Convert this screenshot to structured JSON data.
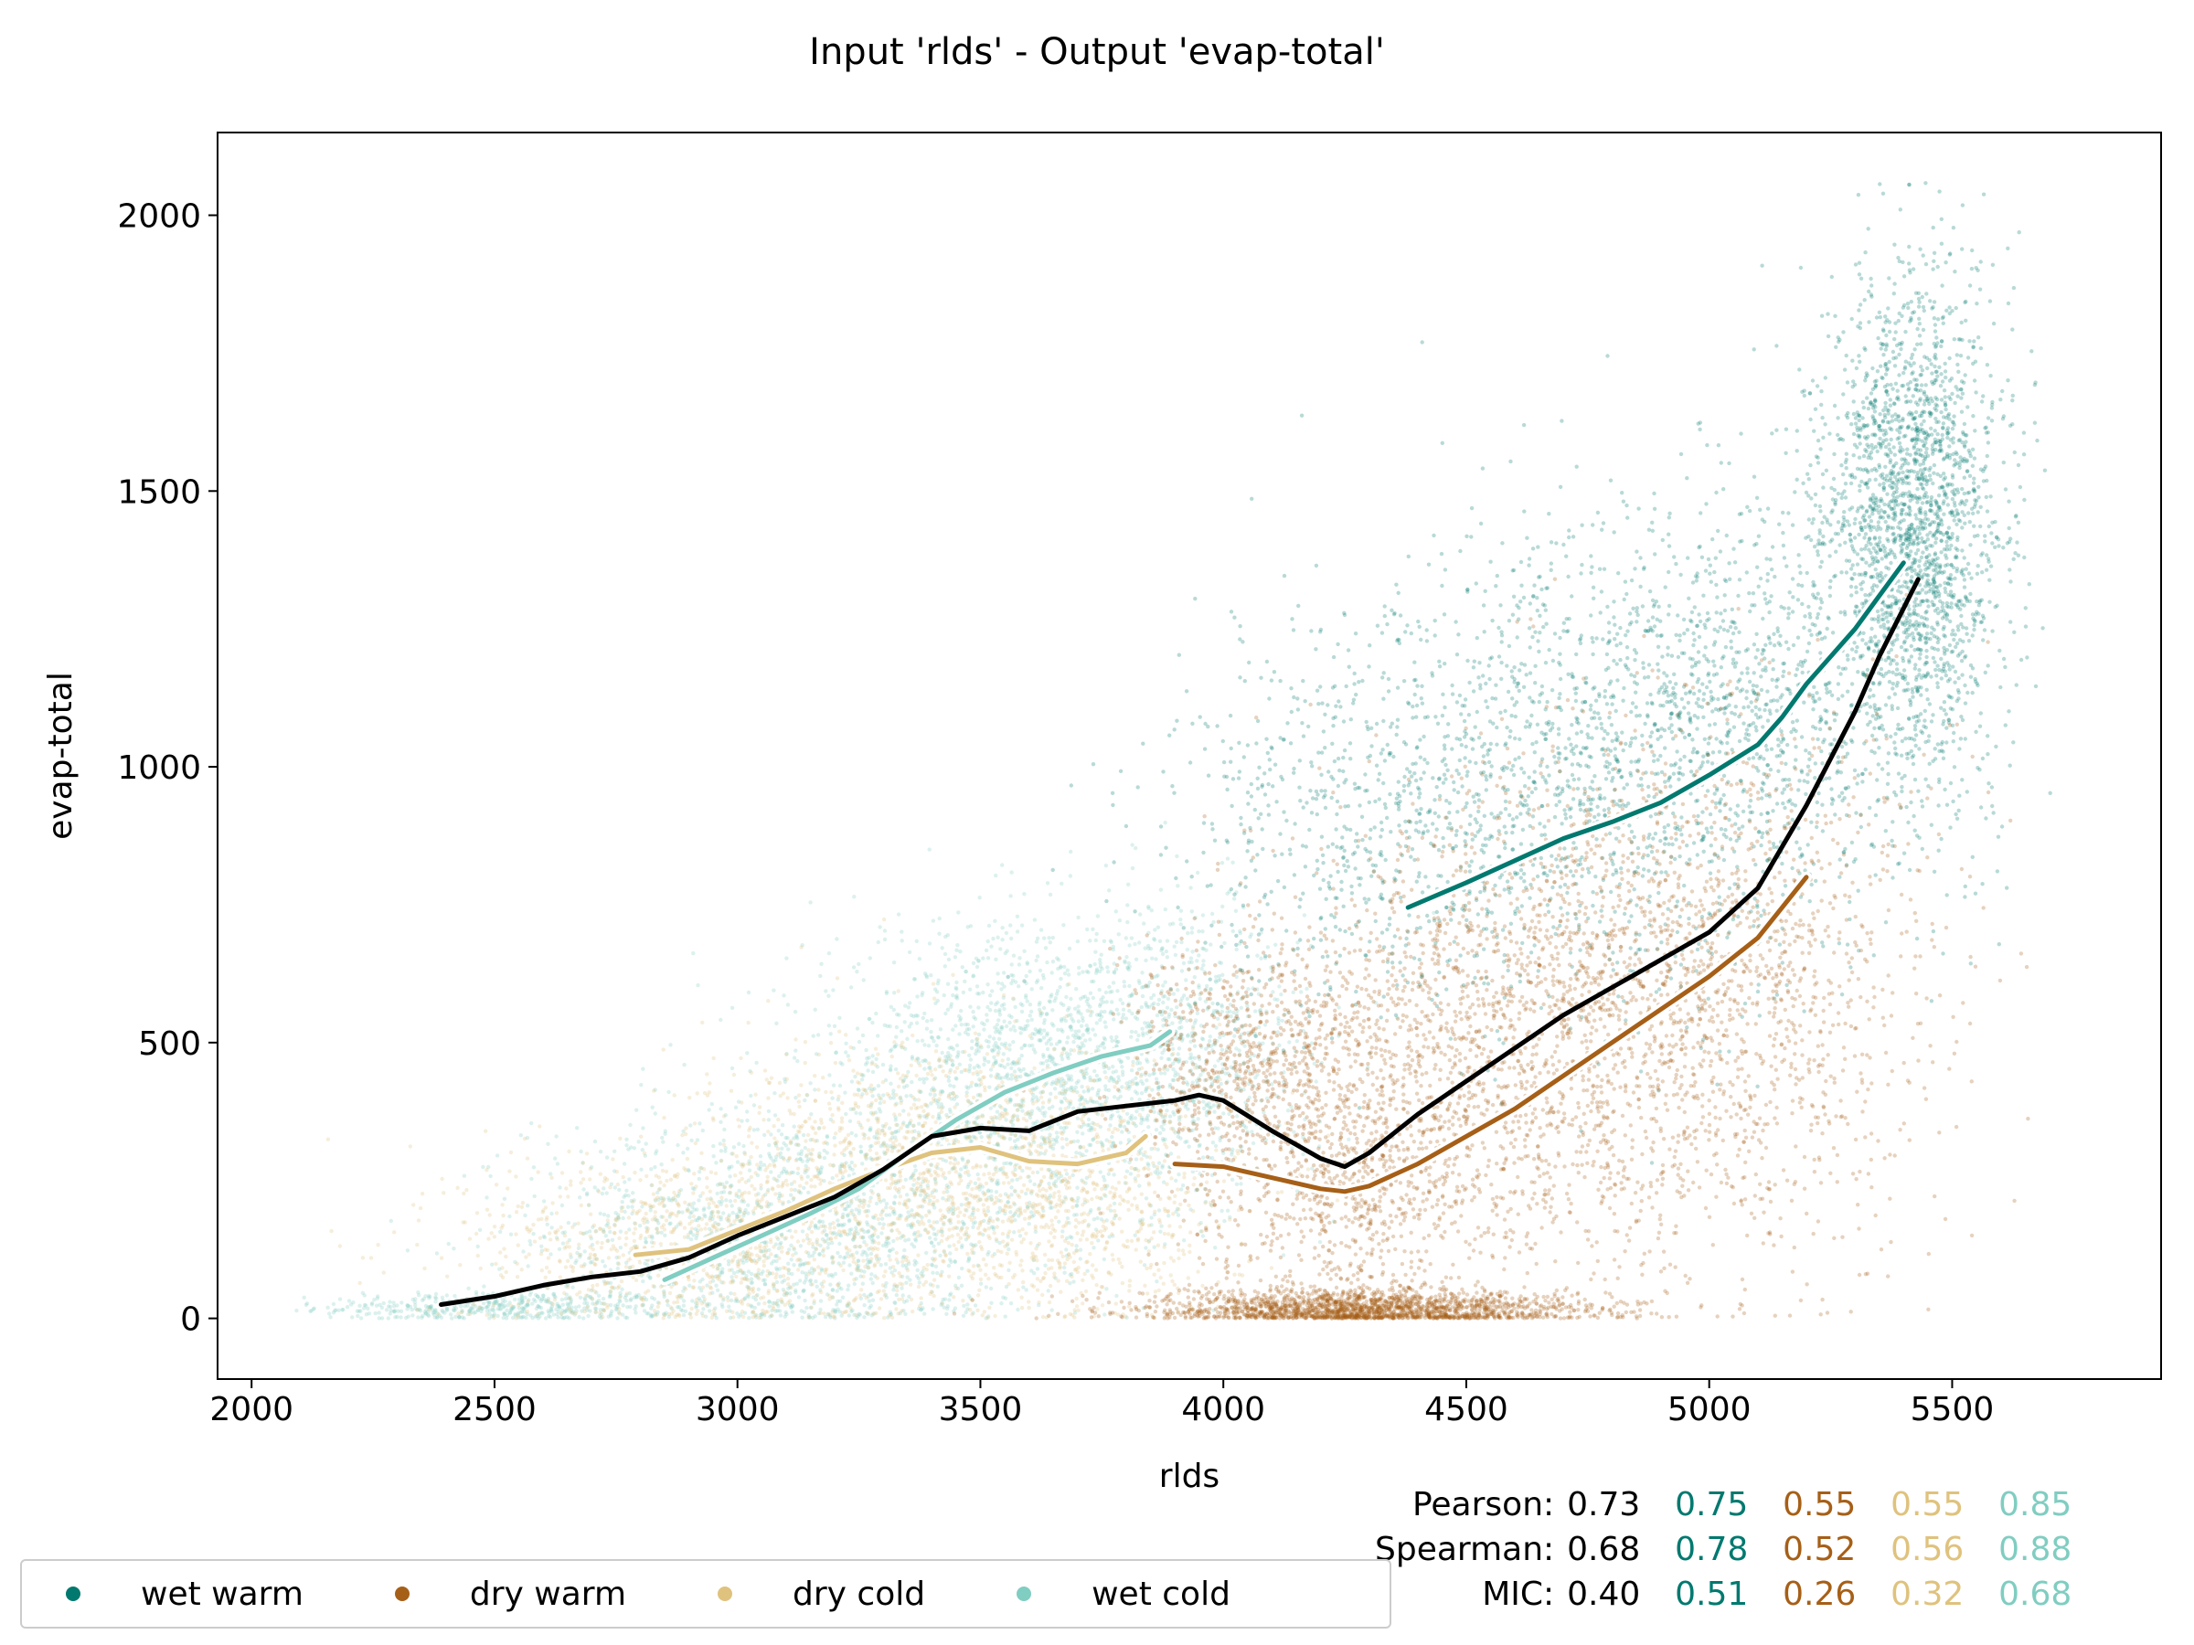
{
  "title": "Input 'rlds' - Output 'evap-total'",
  "colors": {
    "wet_warm": "#01796f",
    "dry_warm": "#a65f17",
    "dry_cold": "#dfc27d",
    "wet_cold": "#80cdc1",
    "all": "#000000"
  },
  "legend": [
    {
      "label": "wet warm",
      "color": "#01796f"
    },
    {
      "label": "dry warm",
      "color": "#a65f17"
    },
    {
      "label": "dry cold",
      "color": "#dfc27d"
    },
    {
      "label": "wet cold",
      "color": "#80cdc1"
    }
  ],
  "stats": {
    "rows": [
      {
        "label": "Pearson:",
        "values": [
          "0.73",
          "0.75",
          "0.55",
          "0.55",
          "0.85"
        ]
      },
      {
        "label": "Spearman:",
        "values": [
          "0.68",
          "0.78",
          "0.52",
          "0.56",
          "0.88"
        ]
      },
      {
        "label": "MIC:",
        "values": [
          "0.40",
          "0.51",
          "0.26",
          "0.32",
          "0.68"
        ]
      }
    ],
    "colors": [
      "#000000",
      "#01796f",
      "#a65f17",
      "#dfc27d",
      "#80cdc1"
    ]
  },
  "chart_data": {
    "type": "scatter",
    "title": "Input 'rlds' - Output 'evap-total'",
    "xlabel": "rlds",
    "ylabel": "evap-total",
    "xlim": [
      1930,
      5930
    ],
    "ylim": [
      -110,
      2150
    ],
    "xticks": [
      2000,
      2500,
      3000,
      3500,
      4000,
      4500,
      5000,
      5500
    ],
    "yticks": [
      0,
      500,
      1000,
      1500,
      2000
    ],
    "grid": false,
    "legend_placement": "bottom-left, below axes",
    "scatter_clouds": [
      {
        "series": "wet cold",
        "clusters": [
          {
            "x": 2500,
            "y": 20,
            "sx": 180,
            "sy": 15,
            "n": 450
          },
          {
            "x": 3100,
            "y": 150,
            "sx": 260,
            "sy": 110,
            "n": 1500
          },
          {
            "x": 3600,
            "y": 430,
            "sx": 230,
            "sy": 140,
            "n": 1800
          },
          {
            "x": 3900,
            "y": 500,
            "sx": 140,
            "sy": 130,
            "n": 600
          }
        ]
      },
      {
        "series": "dry cold",
        "clusters": [
          {
            "x": 2900,
            "y": 130,
            "sx": 230,
            "sy": 90,
            "n": 900
          },
          {
            "x": 3400,
            "y": 270,
            "sx": 230,
            "sy": 120,
            "n": 1300
          },
          {
            "x": 3750,
            "y": 200,
            "sx": 150,
            "sy": 120,
            "n": 500
          }
        ]
      },
      {
        "series": "wet warm",
        "clusters": [
          {
            "x": 4300,
            "y": 900,
            "sx": 230,
            "sy": 180,
            "n": 600
          },
          {
            "x": 4700,
            "y": 1000,
            "sx": 250,
            "sy": 200,
            "n": 1100
          },
          {
            "x": 5100,
            "y": 1100,
            "sx": 200,
            "sy": 220,
            "n": 1100
          },
          {
            "x": 5420,
            "y": 1450,
            "sx": 90,
            "sy": 220,
            "n": 2200
          }
        ]
      },
      {
        "series": "dry warm",
        "clusters": [
          {
            "x": 4300,
            "y": 15,
            "sx": 230,
            "sy": 18,
            "n": 1800
          },
          {
            "x": 4250,
            "y": 300,
            "sx": 150,
            "sy": 180,
            "n": 1200
          },
          {
            "x": 4600,
            "y": 500,
            "sx": 250,
            "sy": 220,
            "n": 1600
          },
          {
            "x": 5000,
            "y": 600,
            "sx": 230,
            "sy": 250,
            "n": 1500
          },
          {
            "x": 4000,
            "y": 450,
            "sx": 100,
            "sy": 120,
            "n": 500
          }
        ]
      }
    ],
    "series": [
      {
        "name": "wet warm",
        "color": "#01796f",
        "x": [
          4380,
          4500,
          4600,
          4700,
          4800,
          4900,
          5000,
          5100,
          5150,
          5200,
          5250,
          5300,
          5350,
          5400
        ],
        "y": [
          745,
          790,
          830,
          870,
          900,
          935,
          985,
          1040,
          1090,
          1150,
          1200,
          1250,
          1310,
          1370
        ]
      },
      {
        "name": "dry warm",
        "color": "#a65f17",
        "x": [
          3900,
          4000,
          4100,
          4200,
          4250,
          4300,
          4400,
          4500,
          4600,
          4700,
          4800,
          4900,
          5000,
          5100,
          5200
        ],
        "y": [
          280,
          275,
          255,
          235,
          230,
          240,
          280,
          330,
          380,
          440,
          500,
          560,
          620,
          690,
          800
        ]
      },
      {
        "name": "dry cold",
        "color": "#dfc27d",
        "x": [
          2790,
          2900,
          3000,
          3100,
          3200,
          3300,
          3400,
          3500,
          3600,
          3700,
          3800,
          3840
        ],
        "y": [
          115,
          125,
          160,
          195,
          235,
          270,
          300,
          310,
          285,
          280,
          300,
          330
        ]
      },
      {
        "name": "wet cold",
        "color": "#80cdc1",
        "x": [
          2850,
          2950,
          3050,
          3150,
          3250,
          3350,
          3450,
          3550,
          3650,
          3750,
          3850,
          3890
        ],
        "y": [
          70,
          110,
          150,
          190,
          235,
          300,
          360,
          410,
          445,
          475,
          495,
          520
        ]
      },
      {
        "name": "",
        "color": "#000000",
        "x": [
          2390,
          2500,
          2600,
          2700,
          2800,
          2900,
          3000,
          3100,
          3200,
          3300,
          3400,
          3500,
          3600,
          3700,
          3800,
          3900,
          3950,
          4000,
          4100,
          4200,
          4250,
          4300,
          4400,
          4500,
          4600,
          4700,
          4800,
          4900,
          5000,
          5100,
          5200,
          5300,
          5350,
          5430
        ],
        "y": [
          25,
          40,
          60,
          75,
          85,
          110,
          150,
          185,
          220,
          270,
          330,
          345,
          340,
          375,
          385,
          395,
          405,
          395,
          340,
          290,
          275,
          300,
          370,
          430,
          490,
          550,
          600,
          650,
          700,
          780,
          930,
          1100,
          1200,
          1340
        ]
      }
    ]
  }
}
